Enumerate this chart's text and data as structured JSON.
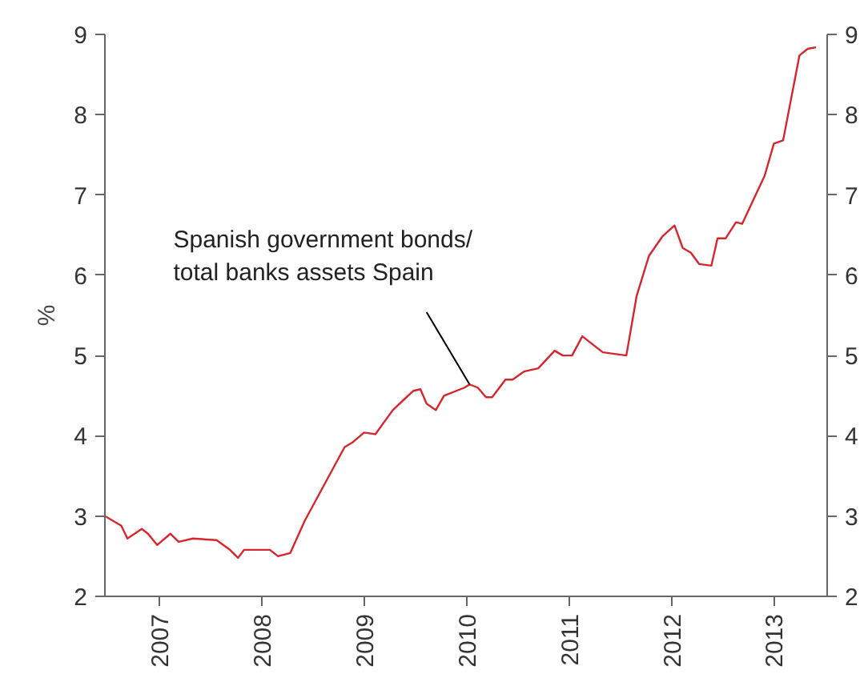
{
  "chart_data": {
    "type": "line",
    "ylabel": "%",
    "x": [
      2006.47,
      2006.63,
      2006.69,
      2006.83,
      2006.89,
      2006.98,
      2007.11,
      2007.19,
      2007.33,
      2007.56,
      2007.69,
      2007.77,
      2007.83,
      2008.08,
      2008.16,
      2008.28,
      2008.42,
      2008.81,
      2008.89,
      2009.0,
      2009.11,
      2009.28,
      2009.48,
      2009.55,
      2009.61,
      2009.7,
      2009.78,
      2009.98,
      2010.03,
      2010.11,
      2010.19,
      2010.25,
      2010.38,
      2010.45,
      2010.56,
      2010.7,
      2010.86,
      2010.94,
      2011.03,
      2011.13,
      2011.23,
      2011.33,
      2011.56,
      2011.66,
      2011.78,
      2011.91,
      2012.03,
      2012.11,
      2012.19,
      2012.27,
      2012.39,
      2012.45,
      2012.53,
      2012.63,
      2012.69,
      2012.8,
      2012.91,
      2013.0,
      2013.09,
      2013.25,
      2013.33,
      2013.41
    ],
    "series": [
      {
        "color": "#d7262b",
        "values": [
          3.0,
          2.88,
          2.72,
          2.84,
          2.78,
          2.64,
          2.78,
          2.68,
          2.72,
          2.7,
          2.58,
          2.48,
          2.58,
          2.58,
          2.5,
          2.54,
          2.94,
          3.86,
          3.92,
          4.04,
          4.02,
          4.32,
          4.56,
          4.58,
          4.4,
          4.32,
          4.5,
          4.6,
          4.64,
          4.6,
          4.48,
          4.48,
          4.7,
          4.7,
          4.8,
          4.84,
          5.06,
          5.0,
          5.0,
          5.24,
          5.14,
          5.04,
          5.0,
          5.74,
          6.24,
          6.48,
          6.62,
          6.34,
          6.28,
          6.14,
          6.12,
          6.46,
          6.46,
          6.66,
          6.64,
          6.94,
          7.24,
          7.64,
          7.68,
          8.74,
          8.82,
          8.84
        ]
      }
    ],
    "xlim": [
      2006.47,
      2013.52
    ],
    "xticks": [
      2007,
      2008,
      2009,
      2010,
      2011,
      2012,
      2013
    ],
    "ylim": [
      2,
      9
    ],
    "yticks": [
      2,
      3,
      4,
      5,
      6,
      7,
      8,
      9
    ],
    "y2lim": [
      2,
      9
    ],
    "y2ticks": [
      2,
      3,
      4,
      5,
      6,
      7,
      8,
      9
    ],
    "annotations": [
      {
        "text": "Spanish government bonds/\ntotal banks assets Spain",
        "x": 2010.03,
        "y": 4.64
      }
    ],
    "grid": false,
    "marker": "none",
    "line_style": "solid"
  }
}
